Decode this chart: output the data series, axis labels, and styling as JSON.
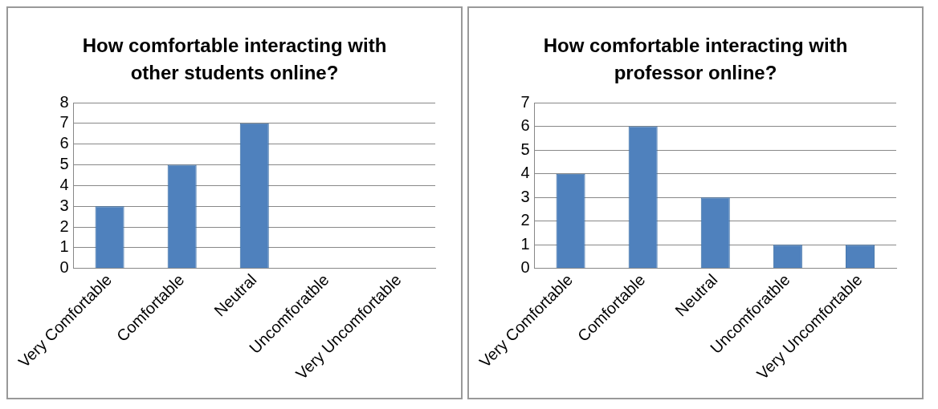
{
  "chart_data": [
    {
      "type": "bar",
      "title": "How comfortable interacting with other students online?",
      "categories": [
        "Very Comfortable",
        "Comfortable",
        "Neutral",
        "Uncomforatble",
        "Very Uncomfortable"
      ],
      "values": [
        3,
        5,
        7,
        0,
        0
      ],
      "color": "#4f81bd",
      "ylim": [
        0,
        8
      ],
      "yticks": [
        0,
        1,
        2,
        3,
        4,
        5,
        6,
        7,
        8
      ],
      "grid": "y",
      "legend": false
    },
    {
      "type": "bar",
      "title": "How comfortable interacting with professor online?",
      "categories": [
        "Very Comfortable",
        "Comfortable",
        "Neutral",
        "Uncomforatble",
        "Very Uncomfortable"
      ],
      "values": [
        4,
        6,
        3,
        1,
        1
      ],
      "color": "#4f81bd",
      "ylim": [
        0,
        7
      ],
      "yticks": [
        0,
        1,
        2,
        3,
        4,
        5,
        6,
        7
      ],
      "grid": "y",
      "legend": false
    }
  ]
}
